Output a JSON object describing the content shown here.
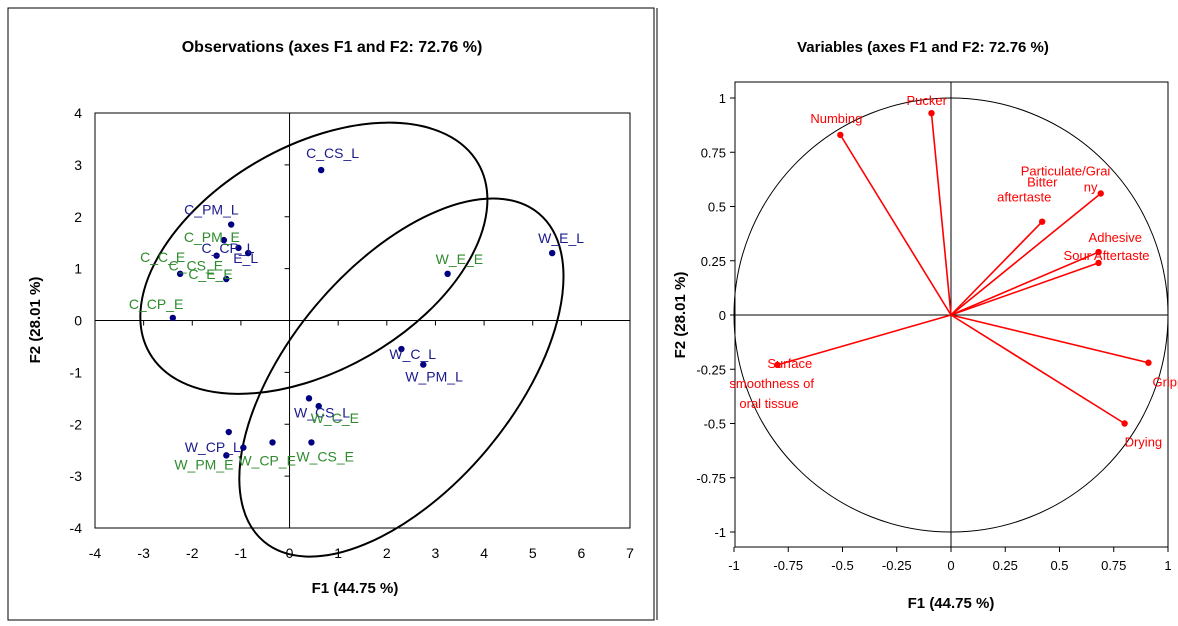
{
  "colors": {
    "obs_point": "#000080",
    "label_blue": "#1a1a8c",
    "label_green": "#2e8b2e",
    "loading": "#ff0000",
    "frame": "#000000",
    "axis_text": "#000000"
  },
  "chart_data": [
    {
      "type": "scatter",
      "title": "Observations (axes F1 and F2: 72.76 %)",
      "xlabel": "F1 (44.75 %)",
      "ylabel": "F2 (28.01 %)",
      "xlim": [
        -4,
        7
      ],
      "ylim": [
        -4,
        4
      ],
      "xticks": [
        -4,
        -3,
        -2,
        -1,
        0,
        1,
        2,
        3,
        4,
        5,
        6,
        7
      ],
      "yticks": [
        -4,
        -3,
        -2,
        -1,
        0,
        1,
        2,
        3,
        4
      ],
      "grid": false,
      "points": [
        {
          "label": "C_CS_L",
          "x": 0.65,
          "y": 2.9,
          "group": "L"
        },
        {
          "label": "C_PM_L",
          "x": -1.2,
          "y": 1.85,
          "group": "L"
        },
        {
          "label": "C_CP_L",
          "x": -1.05,
          "y": 1.4,
          "group": "L"
        },
        {
          "label": "C_E_L",
          "x": -0.85,
          "y": 1.3,
          "group": "L"
        },
        {
          "label": "C_PM_E",
          "x": -1.35,
          "y": 1.55,
          "group": "E"
        },
        {
          "label": "C_CS_E",
          "x": -1.5,
          "y": 1.25,
          "group": "E"
        },
        {
          "label": "C_C_E",
          "x": -2.25,
          "y": 0.9,
          "group": "E"
        },
        {
          "label": "C_E_E",
          "x": -1.3,
          "y": 0.8,
          "group": "E"
        },
        {
          "label": "C_CP_E",
          "x": -2.4,
          "y": 0.05,
          "group": "E"
        },
        {
          "label": "W_E_L",
          "x": 5.4,
          "y": 1.3,
          "group": "L"
        },
        {
          "label": "W_E_E",
          "x": 3.25,
          "y": 0.9,
          "group": "E"
        },
        {
          "label": "W_C_L",
          "x": 2.3,
          "y": -0.55,
          "group": "L"
        },
        {
          "label": "W_PM_L",
          "x": 2.75,
          "y": -0.85,
          "group": "L"
        },
        {
          "label": "W_CS_L",
          "x": 0.4,
          "y": -1.5,
          "group": "L"
        },
        {
          "label": "W_C_E",
          "x": 0.6,
          "y": -1.65,
          "group": "E"
        },
        {
          "label": "W_CS_E",
          "x": 0.45,
          "y": -2.35,
          "group": "E"
        },
        {
          "label": "W_CP_L",
          "x": -1.25,
          "y": -2.15,
          "group": "L"
        },
        {
          "label": "W_PM_E",
          "x": -1.3,
          "y": -2.6,
          "group": "E"
        },
        {
          "label": "W_CP_E",
          "x": -0.95,
          "y": -2.45,
          "group": "E"
        },
        {
          "label": "W_CP_E2",
          "x": -0.35,
          "y": -2.35,
          "group": "E"
        }
      ],
      "ellipses": [
        {
          "cx": 0.5,
          "cy": 1.2,
          "rx": 3.9,
          "ry": 2.3,
          "angle_deg": 30
        },
        {
          "cx": 2.3,
          "cy": -1.1,
          "rx": 4.4,
          "ry": 2.3,
          "angle_deg": 50
        }
      ]
    },
    {
      "type": "scatter",
      "title": "Variables (axes F1 and F2: 72.76 %)",
      "xlabel": "F1 (44.75 %)",
      "ylabel": "F2 (28.01 %)",
      "xlim": [
        -1,
        1
      ],
      "ylim": [
        -1,
        1
      ],
      "xticks": [
        "-1",
        "-0.75",
        "-0.5",
        "-0.25",
        "0",
        "0.25",
        "0.5",
        "0.75",
        "1"
      ],
      "yticks": [
        "-1",
        "-0.75",
        "-0.5",
        "-0.25",
        "0",
        "0.25",
        "0.5",
        "0.75",
        "1"
      ],
      "grid": false,
      "circle_radius": 1,
      "loadings": [
        {
          "label": "Pucker",
          "x": -0.09,
          "y": 0.93
        },
        {
          "label": "Numbing",
          "x": -0.51,
          "y": 0.83
        },
        {
          "label": "Particulate/Grainy",
          "x": 0.69,
          "y": 0.56
        },
        {
          "label": "Bitter aftertaste",
          "x": 0.42,
          "y": 0.43
        },
        {
          "label": "Adhesive",
          "x": 0.68,
          "y": 0.29
        },
        {
          "label": "Sour Aftertaste",
          "x": 0.68,
          "y": 0.24
        },
        {
          "label": "Surface smoothness of oral tissue",
          "x": -0.8,
          "y": -0.23
        },
        {
          "label": "Gripping",
          "x": 0.91,
          "y": -0.22
        },
        {
          "label": "Drying",
          "x": 0.8,
          "y": -0.5
        }
      ]
    }
  ],
  "text": {
    "obs_labels": {
      "C_CS_L": "C_CS_L",
      "C_PM_L": "C_PM_L",
      "C_CP_L": "C_CP_L",
      "C_E_L": "E_L",
      "C_PM_E": "C_PM_E",
      "C_CS_E": "C_CS_E",
      "C_C_E": "C_C_E",
      "C_E_E": "C_E_E",
      "C_CP_E": "C_CP_E",
      "W_E_L": "W_E_L",
      "W_E_E": "W_E_E",
      "W_C_L": "W_C_L",
      "W_PM_L": "W_PM_L",
      "W_CS_L": "W_CS_L",
      "W_C_E": "W_C_E",
      "W_CS_E": "W_CS_E",
      "W_CP_L": "W_CP_L",
      "W_PM_E": "W_PM_E",
      "W_CP_E": "W_CP_E"
    },
    "loading_labels": {
      "Pucker": [
        "Pucker"
      ],
      "Numbing": [
        "Numbing"
      ],
      "Particulate/Grainy": [
        "Particulate/Grai",
        "ny"
      ],
      "Bitter aftertaste": [
        "Bitter",
        "aftertaste"
      ],
      "Adhesive": [
        "Adhesive"
      ],
      "Sour Aftertaste": [
        "Sour Aftertaste"
      ],
      "Surface smoothness of oral tissue": [
        "Surface",
        "smoothness of",
        "oral tissue"
      ],
      "Gripping": [
        "Gripp"
      ],
      "Drying": [
        "Drying"
      ]
    }
  }
}
